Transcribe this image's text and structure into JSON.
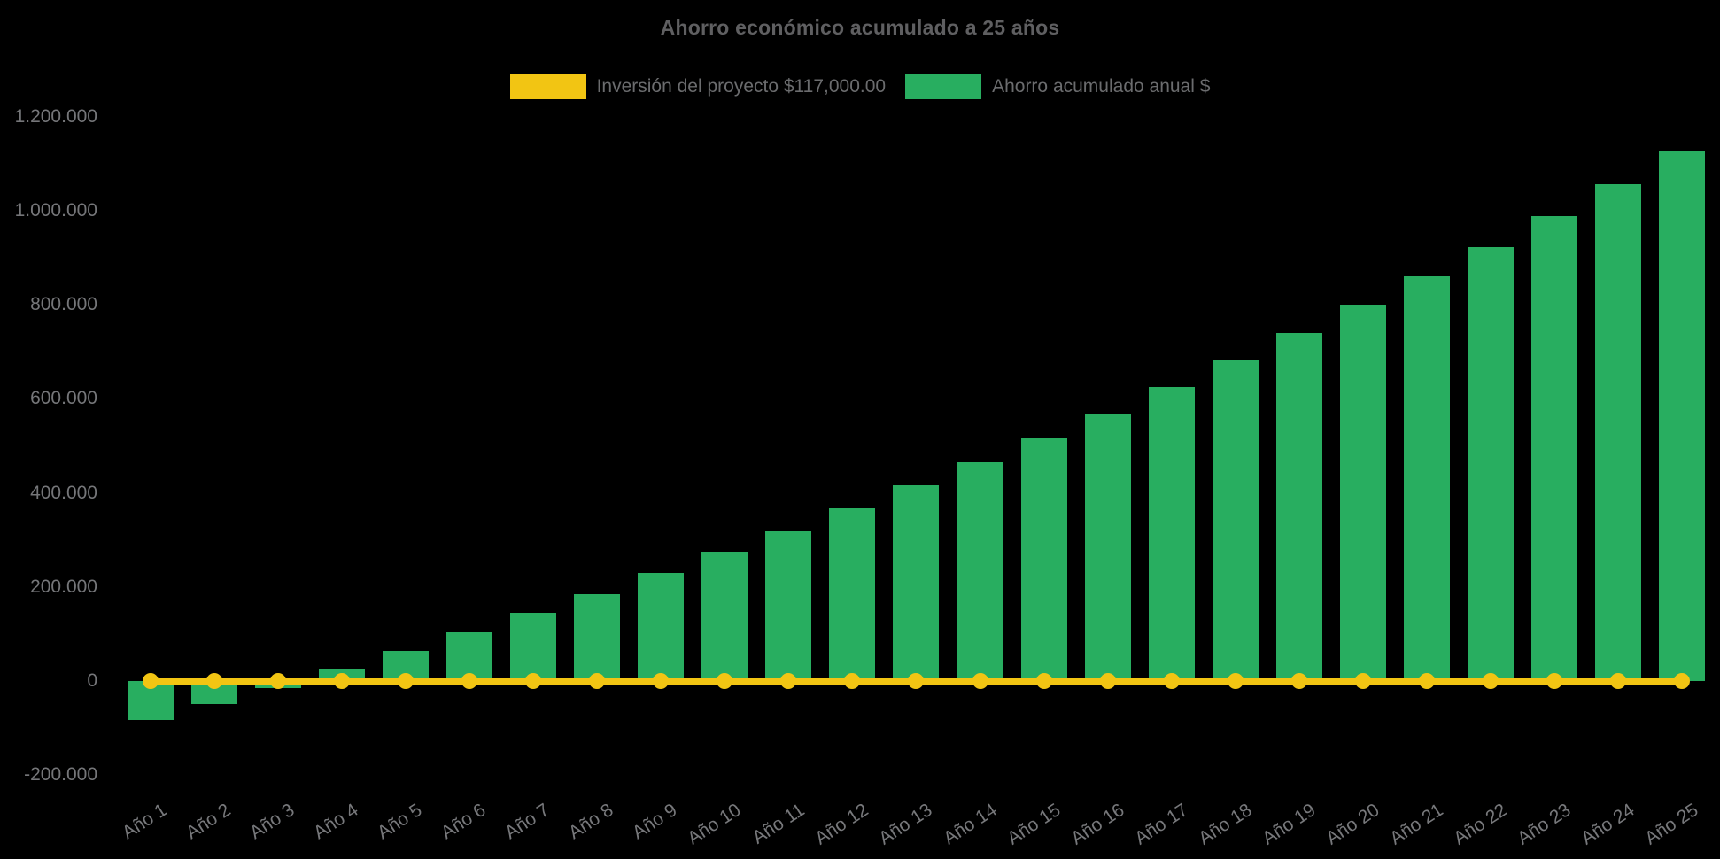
{
  "title": "Ahorro económico acumulado a 25 años",
  "colors": {
    "background": "#000000",
    "bar_green": "#28AE60",
    "line_yellow": "#F2C513",
    "title_text": "#5F5F61",
    "axis_text": "#757679"
  },
  "chart_data": {
    "type": "bar",
    "title": "Ahorro económico acumulado a 25 años",
    "categories": [
      "Año 1",
      "Año 2",
      "Año 3",
      "Año 4",
      "Año 5",
      "Año 6",
      "Año 7",
      "Año 8",
      "Año 9",
      "Año 10",
      "Año 11",
      "Año 12",
      "Año 13",
      "Año 14",
      "Año 15",
      "Año 16",
      "Año 17",
      "Año 18",
      "Año 19",
      "Año 20",
      "Año 21",
      "Año 22",
      "Año 23",
      "Año 24",
      "Año 25"
    ],
    "series": [
      {
        "name": "Inversión del proyecto $117,000.00",
        "type": "line",
        "color": "#F2C513",
        "values": [
          0,
          0,
          0,
          0,
          0,
          0,
          0,
          0,
          0,
          0,
          0,
          0,
          0,
          0,
          0,
          0,
          0,
          0,
          0,
          0,
          0,
          0,
          0,
          0,
          0
        ]
      },
      {
        "name": "Ahorro acumulado anual $",
        "type": "bar",
        "color": "#28AE60",
        "values": [
          -83000,
          -49500,
          -15500,
          25000,
          63500,
          103000,
          144500,
          184000,
          229500,
          275000,
          318500,
          366500,
          416500,
          465500,
          516500,
          569500,
          624500,
          681000,
          740000,
          800000,
          860500,
          923000,
          989000,
          1057000,
          1127000
        ]
      }
    ],
    "xlabel": "",
    "ylabel": "",
    "ylim": [
      -200000,
      1200000
    ],
    "yticks": [
      -200000,
      0,
      200000,
      400000,
      600000,
      800000,
      1000000,
      1200000
    ],
    "ytick_labels": [
      "-200.000",
      "0",
      "200.000",
      "400.000",
      "600.000",
      "800.000",
      "1.000.000",
      "1.200.000"
    ],
    "xtick_rotation_deg": -33,
    "grid": false,
    "legend_position": "top"
  }
}
